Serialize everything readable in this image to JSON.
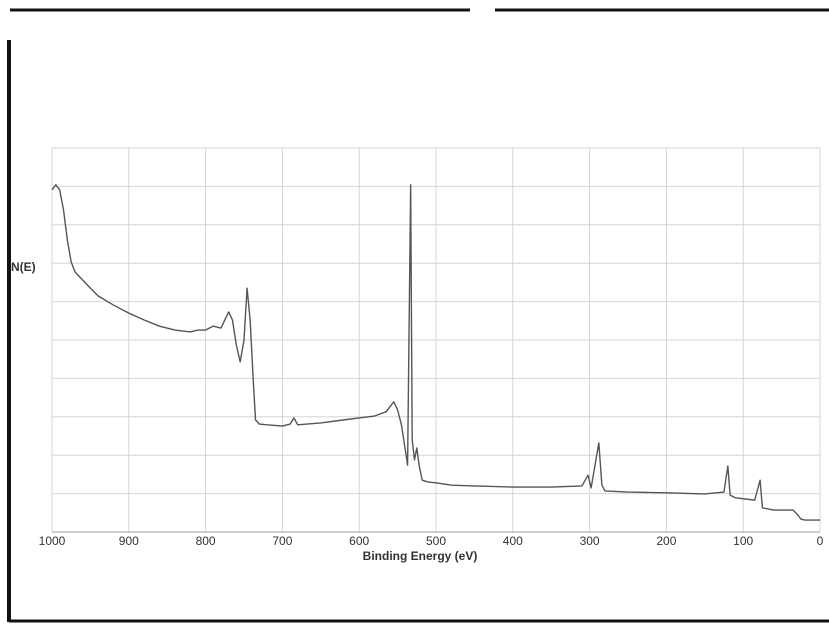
{
  "chart_data": {
    "type": "line",
    "x_label": "Binding Energy (eV)",
    "y_label": "N(E)",
    "xlim": [
      1000,
      0
    ],
    "xticks": [
      1000,
      900,
      800,
      700,
      600,
      500,
      400,
      300,
      200,
      100,
      0
    ],
    "ylim": [
      0,
      10
    ],
    "yticks": [
      0,
      1,
      2,
      3,
      4,
      5,
      6,
      7,
      8,
      9,
      10
    ],
    "grid": true,
    "series": [
      {
        "color": "#555555",
        "x": [
          1000,
          995,
          990,
          985,
          980,
          975,
          970,
          960,
          950,
          940,
          920,
          900,
          880,
          860,
          840,
          820,
          810,
          800,
          790,
          780,
          770,
          765,
          760,
          755,
          750,
          746,
          742,
          738,
          735,
          730,
          720,
          700,
          690,
          685,
          680,
          650,
          620,
          600,
          580,
          565,
          555,
          550,
          545,
          540,
          537,
          533,
          531,
          528,
          525,
          522,
          518,
          510,
          500,
          480,
          450,
          400,
          350,
          310,
          302,
          298,
          288,
          284,
          280,
          250,
          200,
          150,
          125,
          120,
          117,
          110,
          85,
          78,
          75,
          60,
          35,
          30,
          25,
          20,
          10,
          0
        ],
        "values": [
          8.91,
          9.04,
          8.91,
          8.39,
          7.6,
          7.03,
          6.77,
          6.56,
          6.35,
          6.15,
          5.91,
          5.7,
          5.52,
          5.36,
          5.26,
          5.21,
          5.26,
          5.26,
          5.36,
          5.31,
          5.73,
          5.52,
          4.87,
          4.43,
          5.0,
          6.35,
          5.52,
          3.96,
          2.92,
          2.81,
          2.79,
          2.76,
          2.81,
          2.97,
          2.79,
          2.84,
          2.92,
          2.97,
          3.02,
          3.13,
          3.39,
          3.18,
          2.79,
          2.14,
          1.74,
          9.04,
          2.4,
          1.88,
          2.19,
          1.74,
          1.35,
          1.3,
          1.28,
          1.22,
          1.2,
          1.17,
          1.17,
          1.2,
          1.48,
          1.15,
          2.32,
          1.22,
          1.07,
          1.04,
          1.02,
          0.99,
          1.04,
          1.72,
          0.96,
          0.89,
          0.83,
          1.35,
          0.63,
          0.57,
          0.57,
          0.47,
          0.34,
          0.31,
          0.31,
          0.31
        ]
      }
    ]
  }
}
